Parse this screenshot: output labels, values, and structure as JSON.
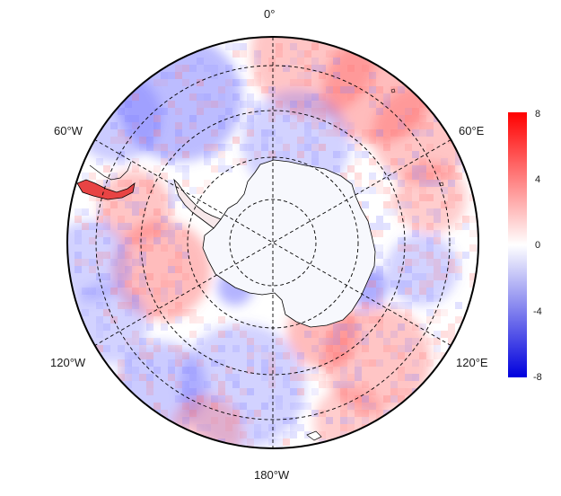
{
  "map": {
    "projection": "south-polar-stereographic",
    "meridian_labels": {
      "top": "0°",
      "upper_left": "60°W",
      "upper_right": "60°E",
      "lower_left": "120°W",
      "lower_right": "120°E",
      "bottom": "180°W"
    },
    "field_range": [
      -8,
      8
    ],
    "colormap": [
      "#0000dd",
      "#ffffff",
      "#ff0000"
    ]
  },
  "colorbar": {
    "ticks": [
      "8",
      "4",
      "0",
      "-4",
      "-8"
    ],
    "values": [
      8,
      4,
      0,
      -4,
      -8
    ],
    "top_color": "#ff0000",
    "mid_color": "#ffffff",
    "bottom_color": "#0000dd"
  }
}
